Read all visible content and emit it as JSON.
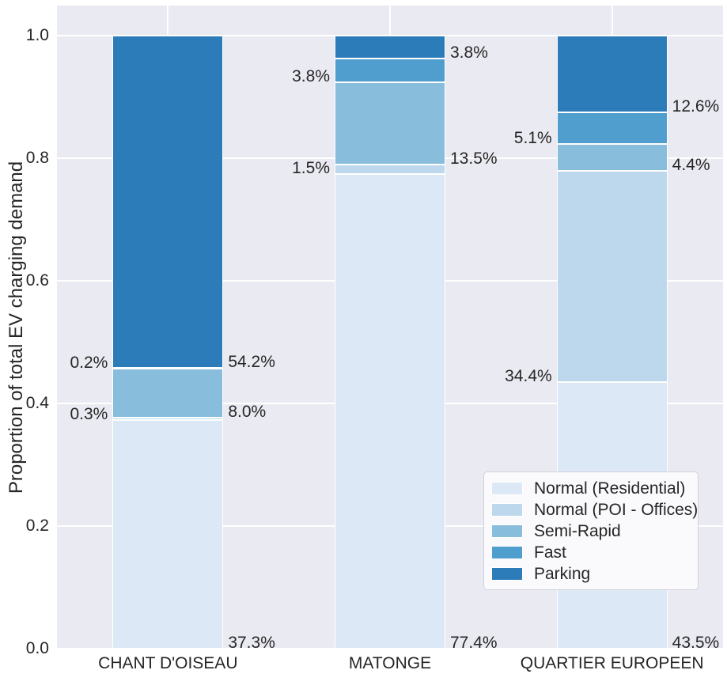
{
  "chart_data": {
    "type": "bar",
    "stacked": true,
    "ylabel": "Proportion of total EV charging demand",
    "xlabel": "",
    "categories": [
      "CHANT D'OISEAU",
      "MATONGE",
      "QUARTIER EUROPEEN"
    ],
    "series": [
      {
        "name": "Normal (Residential)",
        "color": "#dce8f5",
        "values": [
          37.3,
          77.4,
          43.5
        ],
        "labels": [
          "37.3%",
          "77.4%",
          "43.5%"
        ],
        "label_side": "right"
      },
      {
        "name": "Normal (POI - Offices)",
        "color": "#bdd8ec",
        "values": [
          0.3,
          1.5,
          34.4
        ],
        "labels": [
          "0.3%",
          "1.5%",
          "34.4%"
        ],
        "label_side": "left"
      },
      {
        "name": "Semi-Rapid",
        "color": "#88bddc",
        "values": [
          8.0,
          13.5,
          4.4
        ],
        "labels": [
          "8.0%",
          "13.5%",
          "4.4%"
        ],
        "label_side": "right"
      },
      {
        "name": "Fast",
        "color": "#509ecd",
        "values": [
          0.2,
          3.8,
          5.1
        ],
        "labels": [
          "0.2%",
          "3.8%",
          "5.1%"
        ],
        "label_side": "left"
      },
      {
        "name": "Parking",
        "color": "#2d7cba",
        "values": [
          54.2,
          3.8,
          12.6
        ],
        "labels": [
          "54.2%",
          "3.8%",
          "12.6%"
        ],
        "label_side": "right"
      }
    ],
    "value_unit": "%",
    "yticks": [
      "0.0",
      "0.2",
      "0.4",
      "0.6",
      "0.8",
      "1.0"
    ],
    "ylim": [
      0,
      1.048
    ],
    "grid": true,
    "legend_position": "lower right"
  },
  "style": {
    "plot_background": "#eaeaf2",
    "grid_color": "#ffffff",
    "bar_edge_color": "#ffffff",
    "text_color": "#262626",
    "legend_background": "#fafafc",
    "legend_border": "#d2d2da",
    "figure_background": "#ffffff"
  }
}
